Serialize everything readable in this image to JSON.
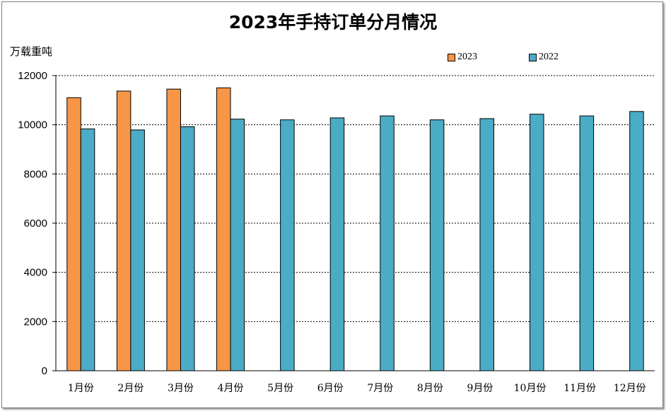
{
  "chart_data": {
    "type": "bar",
    "title": "2023年手持订单分月情况",
    "ylabel": "万载重吨",
    "xlabel": "",
    "ylim": [
      0,
      12000
    ],
    "yticks": [
      0,
      2000,
      4000,
      6000,
      8000,
      10000,
      12000
    ],
    "grid": true,
    "legend_placement": "top-right",
    "categories": [
      "1月份",
      "2月份",
      "3月份",
      "4月份",
      "5月份",
      "6月份",
      "7月份",
      "8月份",
      "9月份",
      "10月份",
      "11月份",
      "12月份"
    ],
    "series": [
      {
        "name": "2023",
        "color": "#f79646",
        "values": [
          11100,
          11370,
          11450,
          11500,
          null,
          null,
          null,
          null,
          null,
          null,
          null,
          null
        ]
      },
      {
        "name": "2022",
        "color": "#4bacc6",
        "values": [
          9830,
          9790,
          9920,
          10230,
          10200,
          10280,
          10360,
          10200,
          10250,
          10430,
          10360,
          10540
        ]
      }
    ]
  }
}
